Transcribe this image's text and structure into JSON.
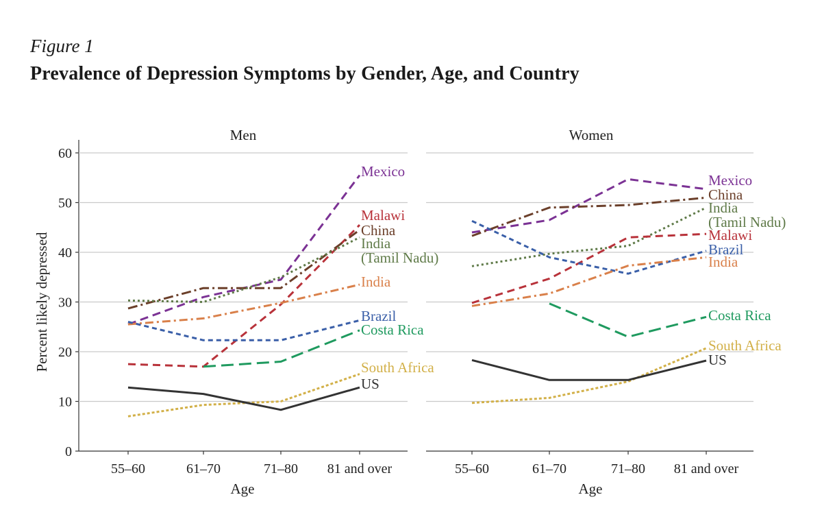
{
  "figure_label": "Figure 1",
  "figure_title": "Prevalence of Depression Symptoms by Gender, Age, and Country",
  "chart_data": {
    "type": "line",
    "ylabel": "Percent likely depressed",
    "xlabel": "Age",
    "ylim": [
      0,
      60
    ],
    "yticks": [
      0,
      10,
      20,
      30,
      40,
      50,
      60
    ],
    "categories": [
      "55–60",
      "61–70",
      "71–80",
      "81 and over"
    ],
    "grid": true,
    "panels": [
      {
        "title": "Men",
        "series": [
          {
            "name": "Mexico",
            "values": [
              25.5,
              31,
              34.5,
              55.5
            ],
            "color": "#7b3294",
            "dash": "12,7",
            "label_lines": [
              "Mexico"
            ]
          },
          {
            "name": "Malawi",
            "values": [
              17.5,
              17,
              29.5,
              45.5
            ],
            "color": "#b8323a",
            "dash": "11,7",
            "label_lines": [
              "Malawi"
            ]
          },
          {
            "name": "China",
            "values": [
              28.7,
              32.8,
              32.8,
              44.5
            ],
            "color": "#6b3f2a",
            "dash": "14,5,3,5",
            "label_lines": [
              "China"
            ]
          },
          {
            "name": "India (Tamil Nadu)",
            "values": [
              30.3,
              30,
              35,
              43
            ],
            "color": "#5f7a48",
            "dash": "3,4",
            "label_lines": [
              "India",
              "(Tamil Nadu)"
            ]
          },
          {
            "name": "India",
            "values": [
              25.5,
              26.7,
              29.8,
              33.5
            ],
            "color": "#d9804a",
            "dash": "12,5,3,5",
            "label_lines": [
              "India"
            ]
          },
          {
            "name": "Brazil",
            "values": [
              26,
              22.3,
              22.3,
              26.3
            ],
            "color": "#3a5fa8",
            "dash": "7,5",
            "label_lines": [
              "Brazil"
            ]
          },
          {
            "name": "Costa Rica",
            "values": [
              null,
              17,
              18,
              24.3
            ],
            "color": "#1f9a5f",
            "dash": "18,8",
            "label_lines": [
              "Costa Rica"
            ]
          },
          {
            "name": "South Africa",
            "values": [
              7,
              9.3,
              10,
              15.5
            ],
            "color": "#d2b048",
            "dash": "4,3",
            "label_lines": [
              "South Africa"
            ]
          },
          {
            "name": "US",
            "values": [
              12.8,
              11.5,
              8.3,
              12.8
            ],
            "color": "#333333",
            "dash": "",
            "label_lines": [
              "US"
            ]
          }
        ]
      },
      {
        "title": "Women",
        "series": [
          {
            "name": "Mexico",
            "values": [
              44,
              46.5,
              54.7,
              52.7
            ],
            "color": "#7b3294",
            "dash": "12,7",
            "label_lines": [
              "Mexico"
            ]
          },
          {
            "name": "China",
            "values": [
              43.3,
              49,
              49.5,
              51
            ],
            "color": "#6b3f2a",
            "dash": "14,5,3,5",
            "label_lines": [
              "China"
            ]
          },
          {
            "name": "India (Tamil Nadu)",
            "values": [
              37.2,
              39.7,
              41.3,
              49
            ],
            "color": "#5f7a48",
            "dash": "3,4",
            "label_lines": [
              "India",
              "(Tamil Nadu)"
            ]
          },
          {
            "name": "Malawi",
            "values": [
              29.8,
              34.7,
              43,
              43.7
            ],
            "color": "#b8323a",
            "dash": "11,7",
            "label_lines": [
              "Malawi"
            ]
          },
          {
            "name": "Brazil",
            "values": [
              46.3,
              39,
              35.7,
              40.3
            ],
            "color": "#3a5fa8",
            "dash": "7,5",
            "label_lines": [
              "Brazil"
            ]
          },
          {
            "name": "India",
            "values": [
              29.2,
              31.7,
              37.3,
              39
            ],
            "color": "#d9804a",
            "dash": "12,5,3,5",
            "label_lines": [
              "India"
            ]
          },
          {
            "name": "Costa Rica",
            "values": [
              null,
              29.7,
              23,
              27
            ],
            "color": "#1f9a5f",
            "dash": "18,8",
            "label_lines": [
              "Costa Rica"
            ]
          },
          {
            "name": "South Africa",
            "values": [
              9.7,
              10.7,
              14,
              20.7
            ],
            "color": "#d2b048",
            "dash": "4,3",
            "label_lines": [
              "South Africa"
            ]
          },
          {
            "name": "US",
            "values": [
              18.3,
              14.3,
              14.3,
              18.2
            ],
            "color": "#333333",
            "dash": "",
            "label_lines": [
              "US"
            ]
          }
        ]
      }
    ]
  }
}
